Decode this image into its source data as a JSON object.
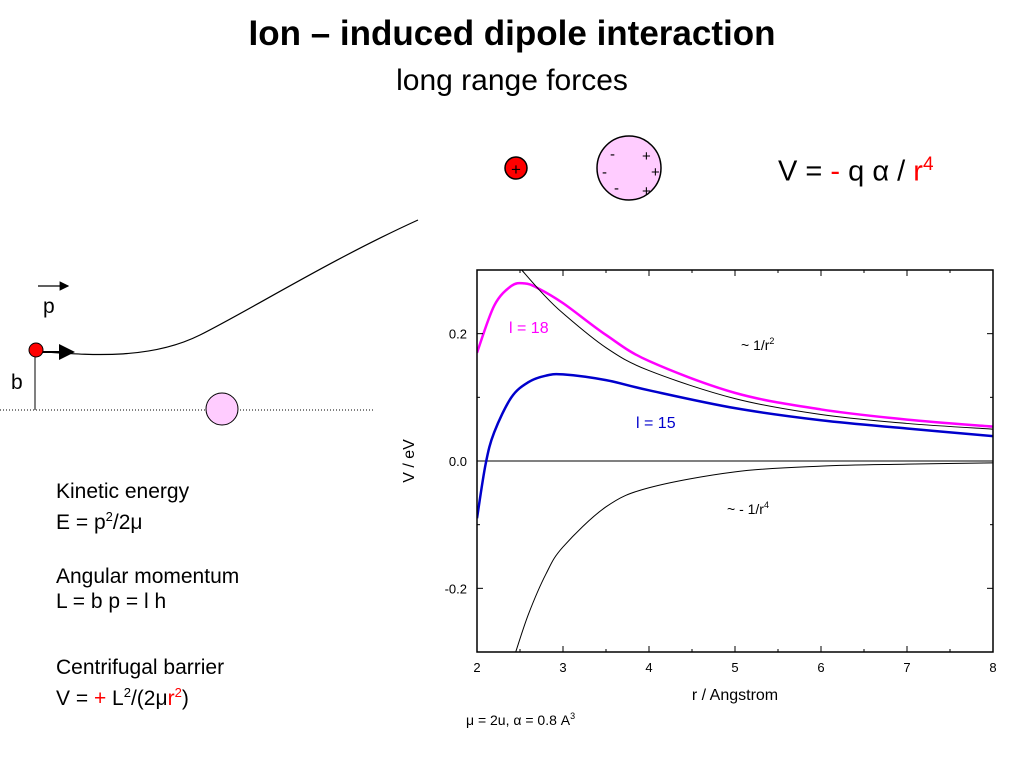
{
  "slide": {
    "title": "Ion – induced dipole interaction",
    "subtitle": "long range forces",
    "formula": {
      "lhs": "V = ",
      "minus": "-",
      "q": " q ",
      "alpha": "α",
      "slash": " / ",
      "r": "r",
      "exp": "4"
    }
  },
  "diagram": {
    "ion_sign": "+",
    "atom_charges": [
      "-",
      "+",
      "-",
      "+",
      "-",
      "+"
    ],
    "momentum_label": "p",
    "impact_label": "b"
  },
  "blocks": {
    "kinetic": {
      "heading": "Kinetic energy",
      "lhs": "E = p",
      "exp": "2",
      "rest": "/2μ"
    },
    "angular": {
      "heading": "Angular momentum",
      "line": "L = b p = l h"
    },
    "barrier": {
      "heading": "Centrifugal barrier",
      "lhs": "V = ",
      "plus": "+",
      "L": " L",
      "exp1": "2",
      "mid": "/(2μ",
      "r": "r",
      "exp2": "2",
      "close": ")"
    }
  },
  "chart_data": {
    "type": "line",
    "title": "",
    "xlabel": "r / Angstrom",
    "ylabel": "V / eV",
    "xlim": [
      2,
      8
    ],
    "ylim": [
      -0.3,
      0.3
    ],
    "xticks": [
      2,
      3,
      4,
      5,
      6,
      7,
      8
    ],
    "yticks": [
      -0.2,
      0.0,
      0.2
    ],
    "ytick_labels": [
      "-0.2",
      "0.0",
      "0.2"
    ],
    "grid": false,
    "note": {
      "text": "μ = 2u, α = 0.8 A",
      "sup": "3"
    },
    "series": [
      {
        "key": "l18",
        "label": "l = 18",
        "color": "#ff00ff",
        "x": [
          2.0,
          2.2,
          2.4,
          2.55,
          2.7,
          3.0,
          3.5,
          4.0,
          5.0,
          6.0,
          7.0,
          8.0
        ],
        "y": [
          0.17,
          0.244,
          0.275,
          0.279,
          0.272,
          0.248,
          0.198,
          0.157,
          0.107,
          0.081,
          0.065,
          0.054
        ]
      },
      {
        "key": "l15",
        "label": "l = 15",
        "color": "#0000cc",
        "x": [
          2.0,
          2.1,
          2.2,
          2.4,
          2.6,
          2.8,
          3.0,
          3.5,
          4.0,
          5.0,
          6.0,
          7.0,
          8.0
        ],
        "y": [
          -0.09,
          -0.005,
          0.045,
          0.1,
          0.124,
          0.134,
          0.136,
          0.127,
          0.111,
          0.083,
          0.064,
          0.051,
          0.039
        ]
      },
      {
        "key": "cent",
        "label": "~ 1/r",
        "sup": "2",
        "color": "#000000",
        "x": [
          2.52,
          2.75,
          3.0,
          3.5,
          4.0,
          5.0,
          6.0,
          7.0,
          8.0
        ],
        "y": [
          0.3,
          0.265,
          0.232,
          0.178,
          0.142,
          0.098,
          0.073,
          0.059,
          0.05
        ]
      },
      {
        "key": "attr",
        "label": "~ - 1/r",
        "sup": "4",
        "color": "#000000",
        "x": [
          2.45,
          2.6,
          2.8,
          3.0,
          3.5,
          4.0,
          5.0,
          6.0,
          7.0,
          8.0
        ],
        "y": [
          -0.3,
          -0.24,
          -0.178,
          -0.135,
          -0.072,
          -0.042,
          -0.017,
          -0.008,
          -0.005,
          -0.003
        ]
      }
    ]
  }
}
